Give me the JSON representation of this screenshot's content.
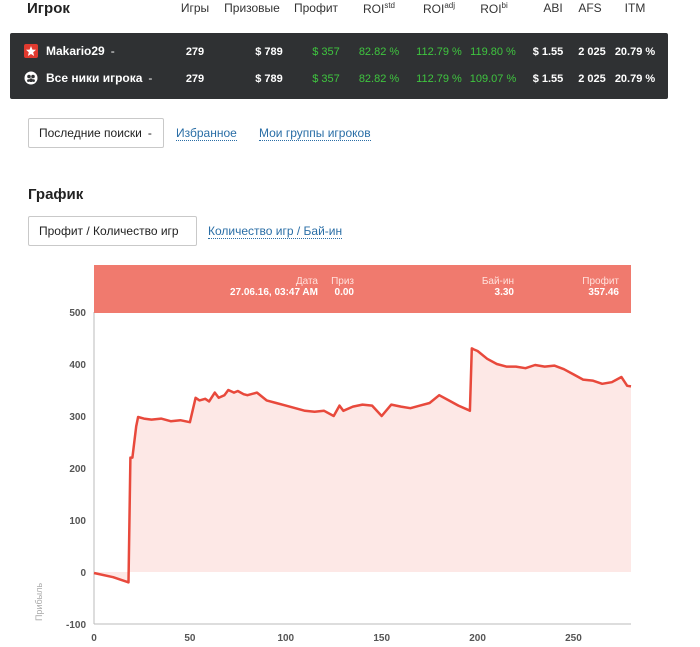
{
  "header": {
    "title": "Игрок",
    "cols": {
      "games": "Игры",
      "prizes": "Призовые",
      "profit": "Профит",
      "roi_std": "ROI",
      "roi_std_sup": "std",
      "roi_adj": "ROI",
      "roi_adj_sup": "adj",
      "roi_bi": "ROI",
      "roi_bi_sup": "bi",
      "abi": "ABI",
      "afs": "AFS",
      "itm": "ITM"
    }
  },
  "players": [
    {
      "name": "Makario29",
      "dropdown": "-",
      "icon": "pokerstars-icon",
      "games": "279",
      "prizes": "$ 789",
      "profit": "$ 357",
      "roi_std": "82.82 %",
      "roi_adj": "112.79 %",
      "roi_bi": "119.80 %",
      "abi": "$ 1.55",
      "afs": "2 025",
      "itm": "20.79 %"
    },
    {
      "name": "Все ники игрока",
      "dropdown": "-",
      "icon": "all-nicks-icon",
      "games": "279",
      "prizes": "$ 789",
      "profit": "$ 357",
      "roi_std": "82.82 %",
      "roi_adj": "112.79 %",
      "roi_bi": "109.07 %",
      "abi": "$ 1.55",
      "afs": "2 025",
      "itm": "20.79 %"
    }
  ],
  "nav": {
    "recent": "Последние поиски",
    "recent_arrow": "-",
    "favorites": "Избранное",
    "groups": "Мои группы игроков"
  },
  "graph": {
    "title": "График",
    "tab_active": "Профит / Количество игр",
    "tab_other": "Количество игр / Бай-ин"
  },
  "tooltip": {
    "date_label": "Дата",
    "date": "27.06.16, 03:47 AM",
    "prize_label": "Приз",
    "prize": "0.00",
    "buyin_label": "Бай-ин",
    "buyin": "3.30",
    "profit_label": "Профит",
    "profit": "357.46"
  },
  "colors": {
    "line": "#e8493c",
    "area": "#fde8e6",
    "tooltip": "#f07a6e",
    "positive": "#3fc53f",
    "panel": "#2f3133"
  },
  "chart_data": {
    "type": "area",
    "ylabel": "Прибыль",
    "xlabel": "",
    "xlim": [
      0,
      280
    ],
    "ylim": [
      -100,
      500
    ],
    "xticks": [
      0,
      50,
      100,
      150,
      200,
      250
    ],
    "yticks": [
      500,
      400,
      300,
      200,
      100,
      0,
      -100
    ],
    "grid": false,
    "series": [
      {
        "x": [
          0,
          10,
          18,
          19,
          20,
          22,
          23,
          26,
          30,
          35,
          40,
          45,
          50,
          53,
          55,
          58,
          60,
          63,
          65,
          68,
          70,
          73,
          75,
          78,
          80,
          85,
          90,
          95,
          100,
          105,
          110,
          115,
          120,
          125,
          128,
          130,
          135,
          140,
          145,
          150,
          155,
          160,
          165,
          170,
          175,
          180,
          185,
          190,
          195,
          196,
          197,
          198,
          200,
          205,
          210,
          215,
          220,
          225,
          230,
          235,
          240,
          245,
          250,
          255,
          260,
          265,
          270,
          275,
          278,
          280
        ],
        "y": [
          -2,
          -10,
          -20,
          220,
          220,
          280,
          298,
          295,
          293,
          295,
          290,
          292,
          288,
          335,
          330,
          333,
          328,
          345,
          335,
          340,
          350,
          345,
          348,
          342,
          340,
          345,
          330,
          325,
          320,
          315,
          310,
          308,
          310,
          300,
          320,
          310,
          318,
          322,
          320,
          300,
          322,
          318,
          315,
          320,
          325,
          340,
          330,
          320,
          312,
          310,
          430,
          428,
          425,
          410,
          400,
          395,
          395,
          392,
          398,
          395,
          397,
          390,
          380,
          370,
          368,
          362,
          365,
          375,
          358,
          357
        ]
      }
    ]
  }
}
